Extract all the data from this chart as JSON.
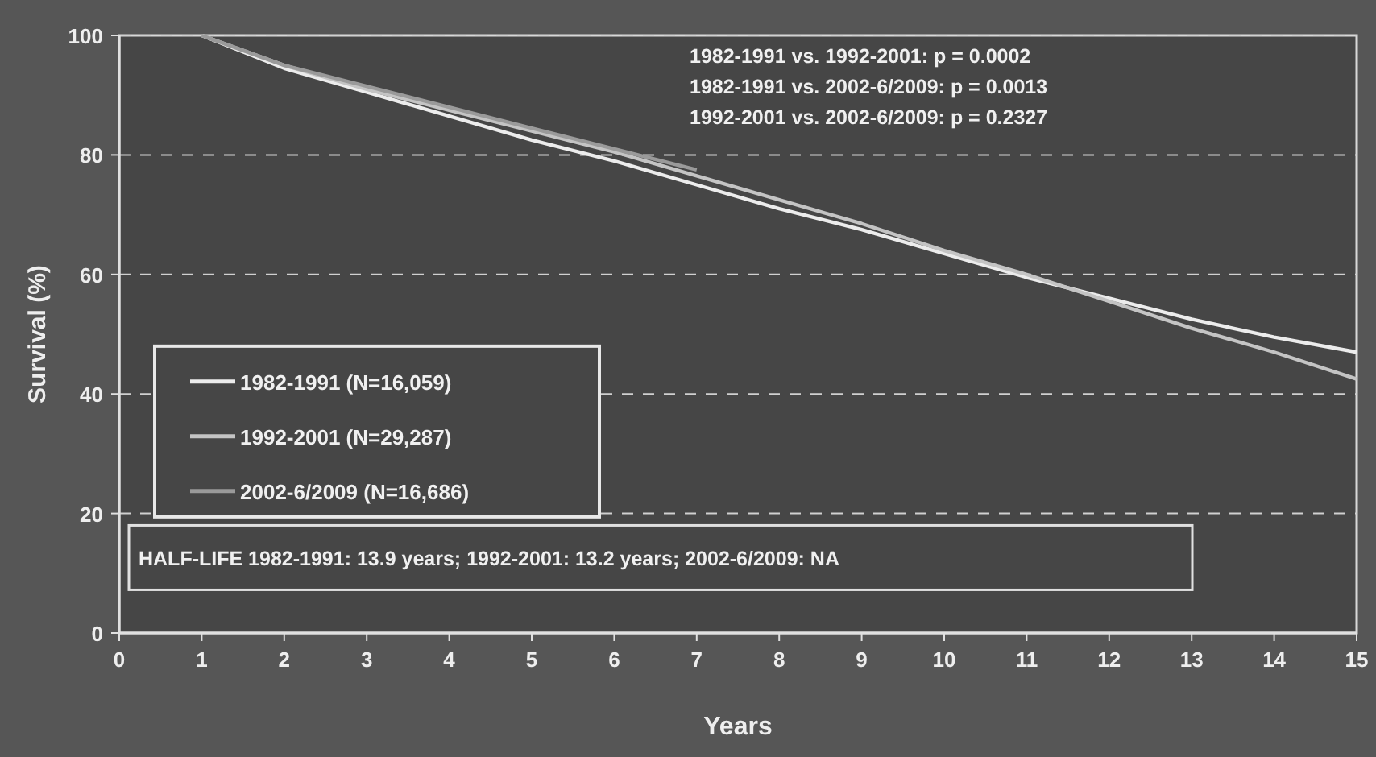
{
  "chart_data": {
    "type": "line",
    "xlabel": "Years",
    "ylabel": "Survival (%)",
    "x": [
      1,
      2,
      3,
      4,
      5,
      6,
      7,
      8,
      9,
      10,
      11,
      12,
      13,
      14,
      15
    ],
    "series": [
      {
        "name": "1982-1991 (N=16,059)",
        "color": "#ececec",
        "values": [
          100,
          94.5,
          90.5,
          86.5,
          82.5,
          79,
          75,
          71,
          67.5,
          63.5,
          59.5,
          56,
          52.5,
          49.5,
          47
        ]
      },
      {
        "name": "1992-2001 (N=29,287)",
        "color": "#c4c4c4",
        "values": [
          100,
          95,
          91,
          87.5,
          84,
          80.5,
          76.5,
          72.5,
          68.5,
          64,
          60,
          55.5,
          51,
          47,
          42.5
        ]
      },
      {
        "name": "2002-6/2009 (N=16,686)",
        "color": "#9a9a9a",
        "x": [
          1,
          2,
          3,
          4,
          5,
          6,
          7
        ],
        "values": [
          100,
          95,
          91.5,
          88,
          84.5,
          81,
          77.5
        ]
      }
    ],
    "xlim": [
      0,
      15
    ],
    "xticks": [
      0,
      1,
      2,
      3,
      4,
      5,
      6,
      7,
      8,
      9,
      10,
      11,
      12,
      13,
      14,
      15
    ],
    "ylim": [
      0,
      100
    ],
    "yticks": [
      0,
      20,
      40,
      60,
      80,
      100
    ],
    "grid": "y",
    "legend": "left",
    "marker": "none",
    "line_style": "solid",
    "annotations": [
      "1982-1991 vs. 1992-2001: p = 0.0002",
      "1982-1991 vs. 2002-6/2009: p = 0.0013",
      "1992-2001 vs. 2002-6/2009: p = 0.2327",
      "HALF-LIFE 1982-1991: 13.9 years; 1992-2001:  13.2 years; 2002-6/2009: NA"
    ]
  }
}
